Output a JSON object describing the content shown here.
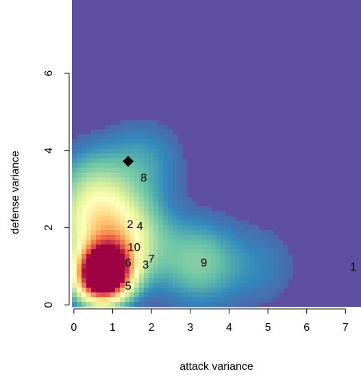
{
  "chart_data": {
    "type": "heatmap",
    "title": "",
    "xlabel": "attack variance",
    "ylabel": "defense variance",
    "xlim": [
      -0.05,
      7.4
    ],
    "ylim": [
      -0.05,
      7.9
    ],
    "x_ticks": [
      0,
      1,
      2,
      3,
      4,
      5,
      6,
      7
    ],
    "y_ticks": [
      0,
      2,
      4,
      6
    ],
    "colormap": [
      "#5e4fa2",
      "#3288bd",
      "#66c2a5",
      "#abdda4",
      "#e6f598",
      "#ffffbf",
      "#fee08b",
      "#fdae61",
      "#f46d43",
      "#d53e4f",
      "#9e0142"
    ],
    "background_color": "#5e4fa2",
    "density_peaks": [
      {
        "x": 0.7,
        "y": 0.7,
        "weight": 1.0
      },
      {
        "x": 0.9,
        "y": 1.0,
        "weight": 0.6
      },
      {
        "x": 0.6,
        "y": 2.0,
        "weight": 0.35
      },
      {
        "x": 1.4,
        "y": 1.7,
        "weight": 0.3
      },
      {
        "x": 0.5,
        "y": 3.0,
        "weight": 0.2
      },
      {
        "x": 1.8,
        "y": 3.7,
        "weight": 0.12
      },
      {
        "x": 3.2,
        "y": 1.1,
        "weight": 0.22
      },
      {
        "x": 4.8,
        "y": 1.0,
        "weight": 0.08
      }
    ],
    "labeled_points": [
      {
        "label": "1",
        "x": 7.2,
        "y": 1.0
      },
      {
        "label": "2",
        "x": 1.45,
        "y": 2.1
      },
      {
        "label": "3",
        "x": 1.85,
        "y": 1.05
      },
      {
        "label": "4",
        "x": 1.7,
        "y": 2.05
      },
      {
        "label": "5",
        "x": 1.4,
        "y": 0.5
      },
      {
        "label": "6",
        "x": 1.4,
        "y": 1.1
      },
      {
        "label": "7",
        "x": 2.0,
        "y": 1.2
      },
      {
        "label": "8",
        "x": 1.8,
        "y": 3.3
      },
      {
        "label": "9",
        "x": 3.35,
        "y": 1.1
      },
      {
        "label": "10",
        "x": 1.55,
        "y": 1.5
      }
    ],
    "highlight_point": {
      "shape": "diamond",
      "x": 1.4,
      "y": 3.72,
      "color": "#000000"
    },
    "grid": false,
    "legend": "none"
  }
}
